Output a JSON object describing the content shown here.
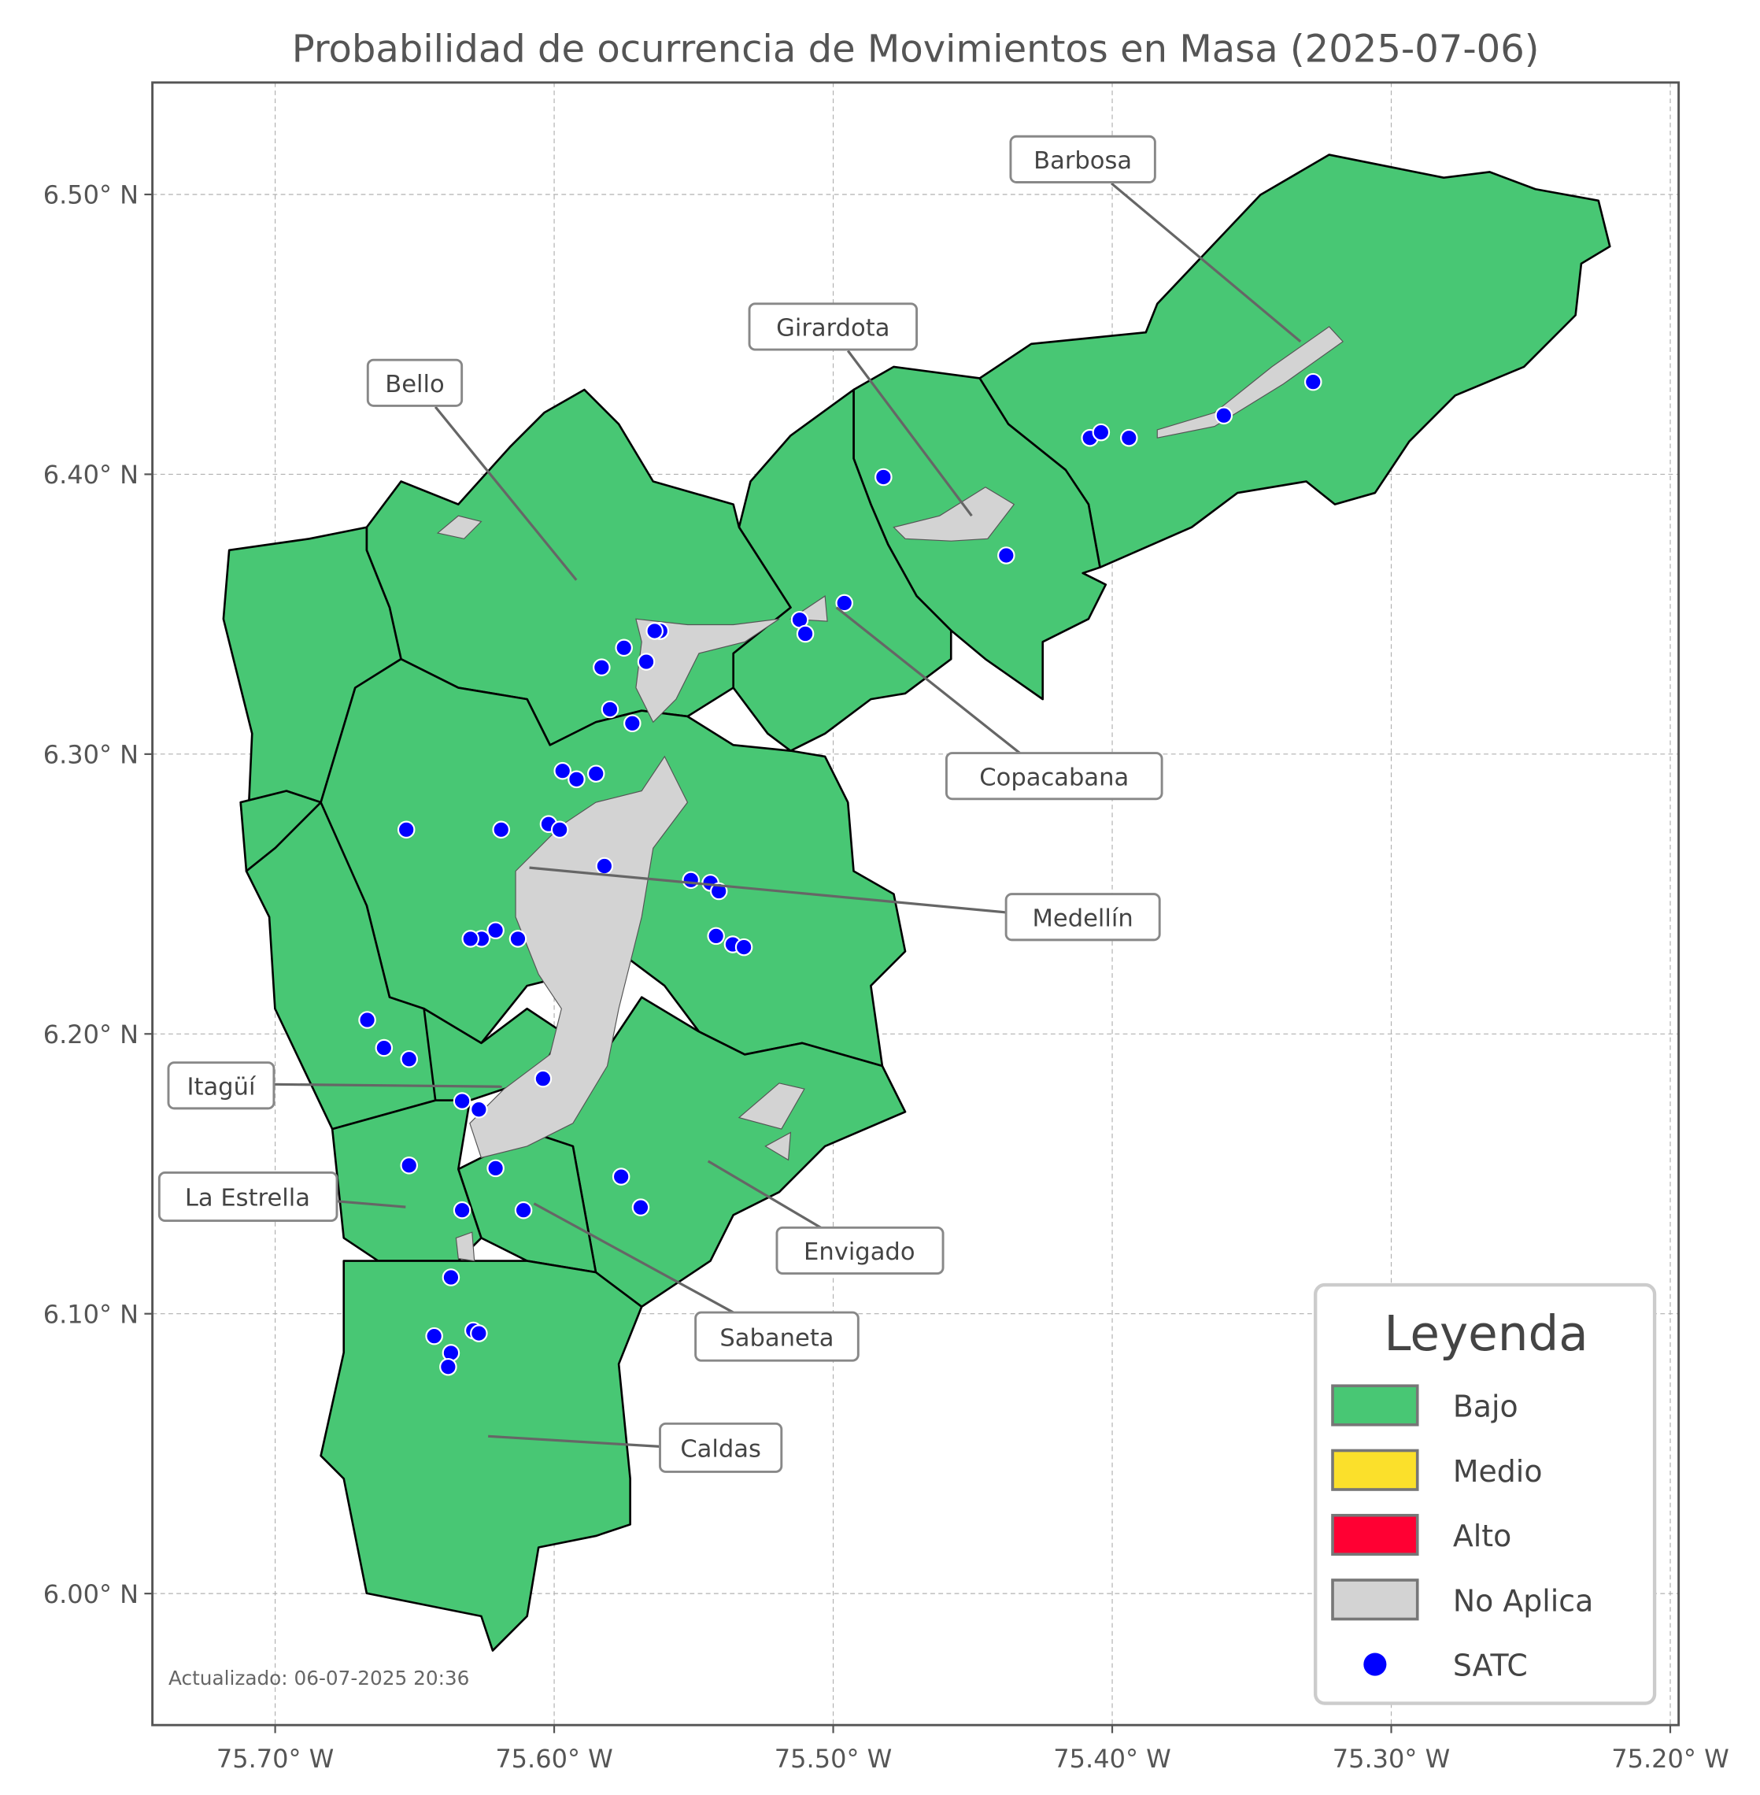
{
  "chart_data": {
    "type": "map",
    "title": "Probabilidad de ocurrencia de Movimientos en Masa (2025-07-06)",
    "x_ticks": [
      "75.70° W",
      "75.60° W",
      "75.50° W",
      "75.40° W",
      "75.30° W",
      "75.20° W"
    ],
    "x_tick_values": [
      -75.7,
      -75.6,
      -75.5,
      -75.4,
      -75.3,
      -75.2
    ],
    "y_ticks": [
      "6.50° N",
      "6.40° N",
      "6.30° N",
      "6.20° N",
      "6.10° N",
      "6.00° N"
    ],
    "y_tick_values": [
      6.5,
      6.4,
      6.3,
      6.2,
      6.1,
      6.0
    ],
    "xlim": [
      -75.744,
      -75.197
    ],
    "ylim": [
      5.953,
      6.54
    ],
    "grid": true,
    "legend_placement": "bottom-right",
    "legend": {
      "title": "Leyenda",
      "items": [
        {
          "label": "Bajo",
          "color": "#48c774",
          "kind": "patch"
        },
        {
          "label": "Medio",
          "color": "#fbe02b",
          "kind": "patch"
        },
        {
          "label": "Alto",
          "color": "#ff0033",
          "kind": "patch"
        },
        {
          "label": "No Aplica",
          "color": "#d3d3d3",
          "kind": "patch"
        },
        {
          "label": "SATC",
          "color": "#0000ff",
          "kind": "point"
        }
      ]
    },
    "municipalities": [
      {
        "name": "Barbosa",
        "level": "Bajo"
      },
      {
        "name": "Girardota",
        "level": "Bajo"
      },
      {
        "name": "Bello",
        "level": "Bajo"
      },
      {
        "name": "Copacabana",
        "level": "Bajo"
      },
      {
        "name": "Medellín",
        "level": "Bajo"
      },
      {
        "name": "Itagüí",
        "level": "Bajo"
      },
      {
        "name": "La Estrella",
        "level": "Bajo"
      },
      {
        "name": "Envigado",
        "level": "Bajo"
      },
      {
        "name": "Sabaneta",
        "level": "Bajo"
      },
      {
        "name": "Caldas",
        "level": "Bajo"
      }
    ],
    "satc_stations": [
      [
        -75.482,
        6.399
      ],
      [
        -75.408,
        6.413
      ],
      [
        -75.404,
        6.415
      ],
      [
        -75.394,
        6.413
      ],
      [
        -75.36,
        6.421
      ],
      [
        -75.328,
        6.433
      ],
      [
        -75.438,
        6.371
      ],
      [
        -75.496,
        6.354
      ],
      [
        -75.512,
        6.348
      ],
      [
        -75.51,
        6.343
      ],
      [
        -75.562,
        6.344
      ],
      [
        -75.564,
        6.344
      ],
      [
        -75.575,
        6.338
      ],
      [
        -75.583,
        6.331
      ],
      [
        -75.567,
        6.333
      ],
      [
        -75.58,
        6.316
      ],
      [
        -75.572,
        6.311
      ],
      [
        -75.597,
        6.294
      ],
      [
        -75.592,
        6.291
      ],
      [
        -75.585,
        6.293
      ],
      [
        -75.653,
        6.273
      ],
      [
        -75.619,
        6.273
      ],
      [
        -75.602,
        6.275
      ],
      [
        -75.598,
        6.273
      ],
      [
        -75.582,
        6.26
      ],
      [
        -75.551,
        6.255
      ],
      [
        -75.544,
        6.254
      ],
      [
        -75.541,
        6.251
      ],
      [
        -75.542,
        6.235
      ],
      [
        -75.536,
        6.232
      ],
      [
        -75.532,
        6.231
      ],
      [
        -75.621,
        6.237
      ],
      [
        -75.626,
        6.234
      ],
      [
        -75.63,
        6.234
      ],
      [
        -75.613,
        6.234
      ],
      [
        -75.667,
        6.205
      ],
      [
        -75.661,
        6.195
      ],
      [
        -75.652,
        6.191
      ],
      [
        -75.604,
        6.184
      ],
      [
        -75.633,
        6.176
      ],
      [
        -75.627,
        6.173
      ],
      [
        -75.652,
        6.153
      ],
      [
        -75.621,
        6.152
      ],
      [
        -75.576,
        6.149
      ],
      [
        -75.569,
        6.138
      ],
      [
        -75.633,
        6.137
      ],
      [
        -75.611,
        6.137
      ],
      [
        -75.637,
        6.113
      ],
      [
        -75.643,
        6.092
      ],
      [
        -75.629,
        6.094
      ],
      [
        -75.637,
        6.086
      ],
      [
        -75.638,
        6.081
      ],
      [
        -75.627,
        6.093
      ]
    ],
    "footnote": "Actualizado: 06-07-2025 20:36"
  }
}
